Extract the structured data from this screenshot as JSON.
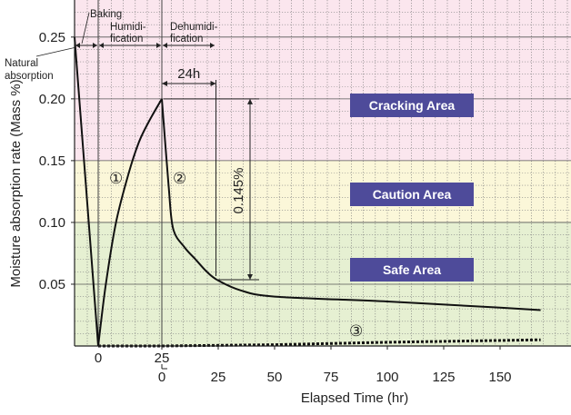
{
  "chart_data": {
    "type": "line",
    "xlabel": "Elapsed Time (hr)",
    "ylabel": "Moisture absorption rate (Mass %)",
    "ylim": [
      0,
      0.28
    ],
    "grid": true,
    "y_ticks": [
      "0.05",
      "0.10",
      "0.15",
      "0.20",
      "0.25"
    ],
    "y_tick_values": [
      0.05,
      0.1,
      0.15,
      0.2,
      0.25
    ],
    "x_ticks_before": [
      {
        "label": "0",
        "value": 0
      },
      {
        "label": "25",
        "value": 25
      }
    ],
    "x_ticks_after": [
      {
        "label": "0",
        "value": 0
      },
      {
        "label": "25",
        "value": 25
      },
      {
        "label": "50",
        "value": 50
      },
      {
        "label": "75",
        "value": 75
      },
      {
        "label": "100",
        "value": 100
      },
      {
        "label": "125",
        "value": 125
      },
      {
        "label": "150",
        "value": 150
      }
    ],
    "areas": [
      {
        "label": "Cracking Area",
        "from": 0.15,
        "to": 0.28,
        "color": "#fbe6ee"
      },
      {
        "label": "Caution Area",
        "from": 0.1,
        "to": 0.15,
        "color": "#fbf7d9"
      },
      {
        "label": "Safe Area",
        "from": 0.0,
        "to": 0.1,
        "color": "#e6f0d2"
      }
    ],
    "area_label_color": "#4e4b9a",
    "phases": [
      {
        "label": "Natural absorption"
      },
      {
        "label": "Baking"
      },
      {
        "label": "Humidi-\nfication"
      },
      {
        "label": "Dehumidi-\nfication"
      }
    ],
    "series": [
      {
        "marker": "①",
        "segment": "before",
        "points": [
          [
            -8,
            0.25
          ],
          [
            0,
            0.0
          ],
          [
            3,
            0.05
          ],
          [
            7,
            0.1
          ],
          [
            12,
            0.14
          ],
          [
            16,
            0.165
          ],
          [
            20,
            0.182
          ],
          [
            25,
            0.2
          ]
        ]
      },
      {
        "marker": "②",
        "segment": "after",
        "points": [
          [
            0,
            0.2
          ],
          [
            3,
            0.13
          ],
          [
            5,
            0.095
          ],
          [
            10,
            0.08
          ],
          [
            15,
            0.07
          ],
          [
            20,
            0.06
          ],
          [
            25,
            0.053
          ],
          [
            35,
            0.045
          ],
          [
            50,
            0.04
          ],
          [
            100,
            0.036
          ],
          [
            150,
            0.031
          ],
          [
            168,
            0.029
          ]
        ]
      },
      {
        "marker": "③",
        "segment": "both",
        "dashed": true,
        "points_before": [
          [
            0,
            0.0
          ],
          [
            25,
            0.0
          ]
        ],
        "points_after": [
          [
            0,
            0.0
          ],
          [
            50,
            0.001
          ],
          [
            100,
            0.003
          ],
          [
            168,
            0.005
          ]
        ]
      }
    ],
    "annotations": {
      "interval": {
        "label": "24h",
        "from": 0,
        "to": 24
      },
      "drop": {
        "label": "0.145%",
        "from": 0.2,
        "to": 0.055
      }
    }
  }
}
